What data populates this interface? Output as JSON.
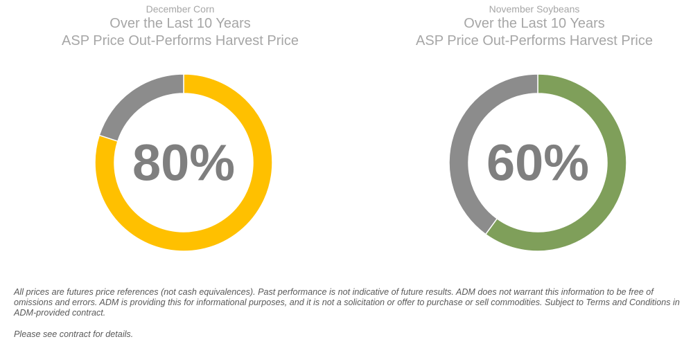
{
  "chart_data": [
    {
      "type": "pie",
      "subtitle": "December Corn",
      "title_lines": [
        "Over the Last 10 Years",
        "ASP Price Out-Performs Harvest Price"
      ],
      "slices": [
        {
          "value": 80,
          "color": "#ffc000"
        },
        {
          "value": 20,
          "color": "#8c8c8c"
        }
      ],
      "center_label": "80%"
    },
    {
      "type": "pie",
      "subtitle": "November Soybeans",
      "title_lines": [
        "Over the Last 10 Years",
        "ASP Price Out-Performs Harvest Price"
      ],
      "slices": [
        {
          "value": 60,
          "color": "#7f9f5a"
        },
        {
          "value": 40,
          "color": "#8c8c8c"
        }
      ],
      "center_label": "60%"
    }
  ],
  "footer": {
    "disclaimer": "All prices are futures price references (not cash equivalences). Past performance is not indicative of future results. ADM does not warrant this information to be free of omissions and errors. ADM is providing this for informational purposes, and it is not a solicitation or offer to purchase or sell commodities. Subject to Terms and Conditions in ADM-provided contract.",
    "note": "Please see contract for details."
  }
}
